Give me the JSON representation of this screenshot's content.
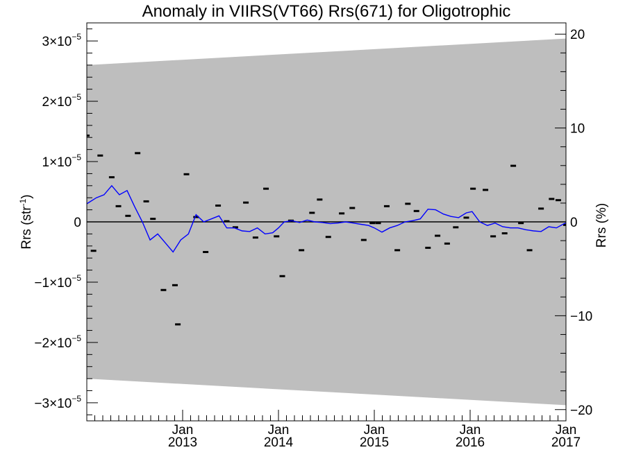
{
  "chart_data": {
    "type": "line",
    "title": "Anomaly in VIIRS(VT66) Rrs(671) for Oligotrophic",
    "ylabel": "Rrs (str",
    "ylabel_sup": "-1",
    "ylabel_end": ")",
    "y2label": "Rrs (%)",
    "xlim": [
      2012.0,
      2017.0
    ],
    "ylim": [
      -3.3e-05,
      3.3e-05
    ],
    "y2lim": [
      -21.2,
      21.2
    ],
    "x_ticks": [
      {
        "value": 2013.0,
        "month": "Jan",
        "year": "2013"
      },
      {
        "value": 2014.0,
        "month": "Jan",
        "year": "2014"
      },
      {
        "value": 2015.0,
        "month": "Jan",
        "year": "2015"
      },
      {
        "value": 2016.0,
        "month": "Jan",
        "year": "2016"
      },
      {
        "value": 2017.0,
        "month": "Jan",
        "year": "2017"
      }
    ],
    "y_ticks": [
      {
        "value": 3e-05,
        "mant": "3×10",
        "exp": "−5"
      },
      {
        "value": 2e-05,
        "mant": "2×10",
        "exp": "−5"
      },
      {
        "value": 1e-05,
        "mant": "1×10",
        "exp": "−5"
      },
      {
        "value": 0,
        "mant": "0",
        "exp": ""
      },
      {
        "value": -1e-05,
        "mant": "−1×10",
        "exp": "−5"
      },
      {
        "value": -2e-05,
        "mant": "−2×10",
        "exp": "−5"
      },
      {
        "value": -3e-05,
        "mant": "−3×10",
        "exp": "−5"
      }
    ],
    "y2_ticks": [
      {
        "value": 20,
        "label": "20"
      },
      {
        "value": 10,
        "label": "10"
      },
      {
        "value": 0,
        "label": "0"
      },
      {
        "value": -10,
        "label": "−10"
      },
      {
        "value": -20,
        "label": "−20"
      }
    ],
    "band": {
      "x": [
        2012.0,
        2017.0
      ],
      "upper": [
        2.6e-05,
        3.04e-05
      ],
      "lower": [
        -2.6e-05,
        -3.04e-05
      ],
      "color": "#bebebe"
    },
    "zero_line": true,
    "series": [
      {
        "style": "markers",
        "color": "#000000",
        "x": [
          2012.0,
          2012.07,
          2012.14,
          2012.26,
          2012.33,
          2012.43,
          2012.53,
          2012.62,
          2012.69,
          2012.8,
          2012.92,
          2012.95,
          2013.04,
          2013.14,
          2013.24,
          2013.37,
          2013.46,
          2013.55,
          2013.66,
          2013.76,
          2013.87,
          2013.98,
          2014.04,
          2014.13,
          2014.24,
          2014.35,
          2014.43,
          2014.52,
          2014.66,
          2014.77,
          2014.89,
          2014.98,
          2015.04,
          2015.13,
          2015.24,
          2015.35,
          2015.44,
          2015.56,
          2015.66,
          2015.76,
          2015.85,
          2015.96,
          2016.03,
          2016.16,
          2016.24,
          2016.36,
          2016.45,
          2016.53,
          2016.62,
          2016.74,
          2016.85,
          2016.92,
          2017.0
        ],
        "y": [
          1.43e-05,
          -4.8e-06,
          1.1e-05,
          7.4e-06,
          2.6e-06,
          1e-06,
          1.14e-05,
          3.4e-06,
          5e-07,
          -1.13e-05,
          -1.05e-05,
          -1.7e-05,
          7.9e-06,
          8e-07,
          -5e-06,
          2.7e-06,
          1e-07,
          -9e-07,
          3.2e-06,
          -2.6e-06,
          5.5e-06,
          -2.4e-06,
          -9e-06,
          2e-07,
          -4.7e-06,
          1.5e-06,
          3.7e-06,
          -2.5e-06,
          1.4e-06,
          2.3e-06,
          -3e-06,
          -2e-07,
          -2e-07,
          2.6e-06,
          -4.7e-06,
          3e-06,
          1.8e-06,
          -4.3e-06,
          -2.3e-06,
          -3.6e-06,
          -9e-07,
          7e-07,
          5.5e-06,
          5.3e-06,
          -2.4e-06,
          -1.9e-06,
          9.3e-06,
          -2e-07,
          -4.7e-06,
          2.2e-06,
          3.8e-06,
          3.6e-06,
          -5e-07
        ]
      },
      {
        "style": "line",
        "color": "#0000ff",
        "x": [
          2012.0,
          2012.1,
          2012.18,
          2012.26,
          2012.34,
          2012.42,
          2012.5,
          2012.58,
          2012.66,
          2012.74,
          2012.82,
          2012.9,
          2012.98,
          2013.06,
          2013.14,
          2013.22,
          2013.3,
          2013.38,
          2013.46,
          2013.54,
          2013.62,
          2013.7,
          2013.78,
          2013.86,
          2013.94,
          2014.0,
          2014.06,
          2014.14,
          2014.22,
          2014.3,
          2014.38,
          2014.46,
          2014.54,
          2014.62,
          2014.7,
          2014.78,
          2014.86,
          2014.94,
          2015.0,
          2015.08,
          2015.16,
          2015.24,
          2015.32,
          2015.4,
          2015.48,
          2015.56,
          2015.64,
          2015.72,
          2015.8,
          2015.88,
          2015.96,
          2016.02,
          2016.1,
          2016.18,
          2016.26,
          2016.34,
          2016.42,
          2016.5,
          2016.58,
          2016.66,
          2016.74,
          2016.82,
          2016.9,
          2016.98,
          2017.0
        ],
        "y": [
          3e-06,
          4e-06,
          4.5e-06,
          6e-06,
          4.5e-06,
          5.2e-06,
          2.5e-06,
          0.0,
          -3e-06,
          -2e-06,
          -3.5e-06,
          -5e-06,
          -3e-06,
          -2e-06,
          1.2e-06,
          0.0,
          5e-07,
          1e-06,
          -1e-06,
          -1e-06,
          -1.5e-06,
          -1.6e-06,
          -1e-06,
          -2e-06,
          -1.8e-06,
          -1e-06,
          0.0,
          2e-07,
          -1e-07,
          3e-07,
          0.0,
          -1e-07,
          -3e-07,
          -2e-07,
          0.0,
          -2e-07,
          -4e-07,
          -6e-07,
          -1e-06,
          -1.7e-06,
          -1e-06,
          -6e-07,
          0.0,
          2e-07,
          5e-07,
          2.1e-06,
          2e-06,
          1.3e-06,
          9e-07,
          7e-07,
          1.5e-06,
          1.7e-06,
          0.0,
          -6e-07,
          -2e-07,
          -8e-07,
          -1e-06,
          -1e-06,
          -1.3e-06,
          -1.5e-06,
          -1.6e-06,
          -8e-07,
          -1e-06,
          -3e-07,
          -2e-07
        ]
      }
    ]
  }
}
